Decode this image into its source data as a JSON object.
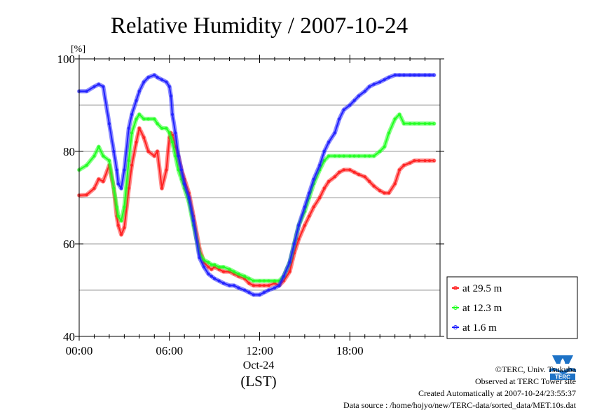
{
  "chart_data": {
    "type": "line",
    "title": "Relative Humidity / 2007-10-24",
    "y_unit_label": "[%]",
    "ylim": [
      40,
      100
    ],
    "y_ticks": [
      40,
      60,
      80,
      100
    ],
    "y_gridlines": [
      50,
      60,
      70,
      80,
      90
    ],
    "xlim_hours": [
      0,
      24
    ],
    "x_ticks": [
      {
        "hour": 0,
        "label": "00:00"
      },
      {
        "hour": 6,
        "label": "06:00"
      },
      {
        "hour": 12,
        "label": "12:00"
      },
      {
        "hour": 18,
        "label": "18:00"
      }
    ],
    "x_date_label": "Oct-24",
    "x_axis_label": "(LST)",
    "grid": "horizontal",
    "legend_position": "bottom-right",
    "series": [
      {
        "name": "at 29.5 m",
        "color": "#ff2020",
        "x_hours": [
          0,
          0.5,
          1,
          1.3,
          1.6,
          2,
          2.3,
          2.5,
          2.6,
          2.8,
          3,
          3.3,
          3.5,
          3.8,
          4,
          4.3,
          4.6,
          5,
          5.2,
          5.5,
          5.8,
          6,
          6.1,
          6.2,
          6.4,
          6.6,
          6.8,
          7,
          7.3,
          7.6,
          8,
          8.3,
          8.6,
          8.8,
          9,
          9.3,
          9.6,
          10,
          10.3,
          10.6,
          11,
          11.3,
          11.6,
          12,
          12.3,
          12.6,
          13,
          13.3,
          13.6,
          14,
          14.3,
          14.6,
          15,
          15.3,
          15.6,
          16,
          16.3,
          16.6,
          17,
          17.3,
          17.6,
          18,
          18.3,
          18.6,
          19,
          19.3,
          19.6,
          20,
          20.3,
          20.6,
          21,
          21.3,
          21.6,
          22,
          22.3,
          22.6,
          23,
          23.3,
          23.6
        ],
        "values": [
          70.5,
          70.6,
          72,
          74,
          73.5,
          77,
          72,
          66,
          64,
          62,
          63.5,
          72,
          77,
          82,
          85,
          83,
          80,
          79,
          80,
          72,
          76,
          83,
          84,
          83.5,
          81,
          79,
          76,
          74,
          71,
          66,
          59,
          56,
          55,
          54.5,
          55,
          54.5,
          54,
          54,
          53.5,
          53,
          52.5,
          51.5,
          51,
          51,
          51,
          51,
          51.5,
          51,
          52,
          54,
          58,
          61,
          64,
          66,
          68,
          70,
          72,
          73.5,
          74.5,
          75.5,
          76,
          76,
          75.5,
          75,
          74.5,
          73.5,
          72.5,
          71.5,
          71,
          71,
          73,
          76,
          77,
          77.5,
          78,
          78,
          78,
          78,
          78
        ],
        "note": ""
      },
      {
        "name": "at 12.3 m",
        "color": "#20ff20",
        "x_hours": [
          0,
          0.5,
          1,
          1.3,
          1.6,
          2,
          2.3,
          2.5,
          2.6,
          2.8,
          3,
          3.3,
          3.5,
          3.8,
          4,
          4.3,
          4.6,
          5,
          5.2,
          5.5,
          5.8,
          6,
          6.1,
          6.2,
          6.4,
          6.6,
          6.8,
          7,
          7.3,
          7.6,
          8,
          8.3,
          8.6,
          8.8,
          9,
          9.3,
          9.6,
          10,
          10.3,
          10.6,
          11,
          11.3,
          11.6,
          12,
          12.3,
          12.6,
          13,
          13.3,
          13.6,
          14,
          14.3,
          14.6,
          15,
          15.3,
          15.6,
          16,
          16.3,
          16.6,
          17,
          17.3,
          17.6,
          18,
          18.3,
          18.6,
          19,
          19.3,
          19.6,
          20,
          20.3,
          20.6,
          21,
          21.3,
          21.6,
          22,
          22.3,
          22.6,
          23,
          23.3,
          23.6
        ],
        "values": [
          76,
          77,
          79,
          81,
          79,
          78,
          72,
          68,
          66,
          65,
          68,
          78,
          84,
          87,
          88,
          87,
          87,
          87,
          86,
          85,
          85,
          84,
          83,
          82,
          79,
          76,
          74,
          72,
          69,
          64,
          58,
          56.5,
          56,
          55.5,
          55.5,
          55,
          55,
          54.5,
          54,
          53.5,
          53,
          52.5,
          52,
          52,
          52,
          52,
          52,
          52,
          53,
          56,
          60,
          64,
          67,
          70,
          73,
          76,
          78,
          79,
          79,
          79,
          79,
          79,
          79,
          79,
          79,
          79,
          79,
          80,
          81,
          84,
          87,
          88,
          86,
          86,
          86,
          86,
          86,
          86,
          86
        ],
        "note": ""
      },
      {
        "name": "at 1.6 m",
        "color": "#2020ff",
        "x_hours": [
          0,
          0.5,
          1,
          1.3,
          1.6,
          2,
          2.3,
          2.5,
          2.6,
          2.8,
          3,
          3.3,
          3.5,
          3.8,
          4,
          4.3,
          4.6,
          5,
          5.2,
          5.5,
          5.8,
          6,
          6.1,
          6.2,
          6.4,
          6.6,
          6.8,
          7,
          7.3,
          7.6,
          8,
          8.3,
          8.6,
          8.8,
          9,
          9.3,
          9.6,
          10,
          10.3,
          10.6,
          11,
          11.3,
          11.6,
          12,
          12.3,
          12.6,
          13,
          13.3,
          13.6,
          14,
          14.3,
          14.6,
          15,
          15.3,
          15.6,
          16,
          16.3,
          16.6,
          17,
          17.3,
          17.6,
          18,
          18.3,
          18.6,
          19,
          19.3,
          19.6,
          20,
          20.3,
          20.6,
          21,
          21.3,
          21.6,
          22,
          22.3,
          22.6,
          23,
          23.3,
          23.6
        ],
        "values": [
          93,
          93,
          94,
          94.5,
          94,
          86,
          80,
          76,
          73,
          72,
          76,
          85,
          88,
          91,
          93,
          95,
          96,
          96.5,
          96,
          95.5,
          95,
          94,
          92,
          88,
          84,
          79,
          76,
          73,
          70,
          65,
          57,
          55,
          53.5,
          53,
          52.5,
          52,
          51.5,
          51,
          51,
          50.5,
          50,
          49.5,
          49,
          49,
          49.5,
          50,
          50.5,
          51,
          53,
          56,
          60,
          64,
          68,
          71,
          74,
          77,
          80,
          82,
          84,
          87,
          89,
          90,
          91,
          92,
          93,
          94,
          94.5,
          95,
          95.5,
          96,
          96.5,
          96.5,
          96.5,
          96.5,
          96.5,
          96.5,
          96.5,
          96.5,
          96.5
        ],
        "note": ""
      }
    ]
  },
  "footer": {
    "copyright": "©TERC, Univ. Tsukuba",
    "observed": "Observed at TERC Tower site",
    "created": "Created Automatically at 2007-10-24/23:55:37",
    "source": "Data source : /home/hojyo/new/TERC-data/sorted_data/MET.10s.dat"
  },
  "logo": {
    "text": "TERC",
    "color": "#1d72c6"
  }
}
